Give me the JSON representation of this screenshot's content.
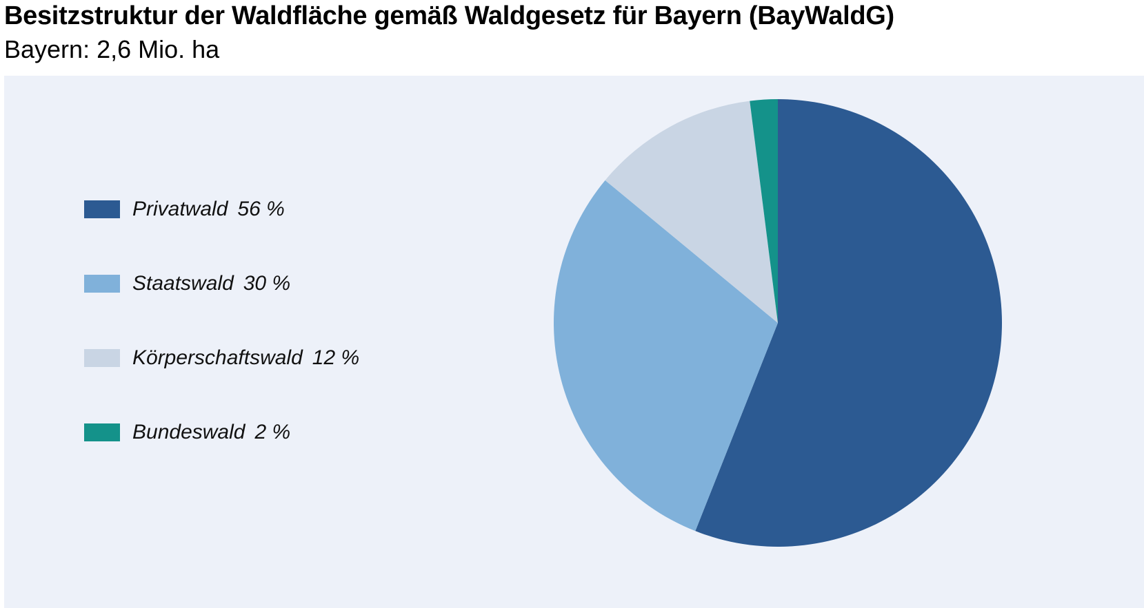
{
  "chart_data": {
    "type": "pie",
    "title": "Besitzstruktur der Waldfläche gemäß Waldgesetz für Bayern (BayWaldG)",
    "subtitle": "Bayern: 2,6 Mio. ha",
    "unit": "%",
    "legend_position": "left",
    "slices": [
      {
        "label": "Privatwald",
        "value": 56,
        "display": "56 %",
        "color": "#2c5a92"
      },
      {
        "label": "Staatswald",
        "value": 30,
        "display": "30 %",
        "color": "#80b1da"
      },
      {
        "label": "Körperschaftswald",
        "value": 12,
        "display": "12 %",
        "color": "#c9d5e4"
      },
      {
        "label": "Bundeswald",
        "value": 2,
        "display": "2 %",
        "color": "#14928a"
      }
    ]
  },
  "colors": {
    "panel_background": "#edf1f9"
  }
}
